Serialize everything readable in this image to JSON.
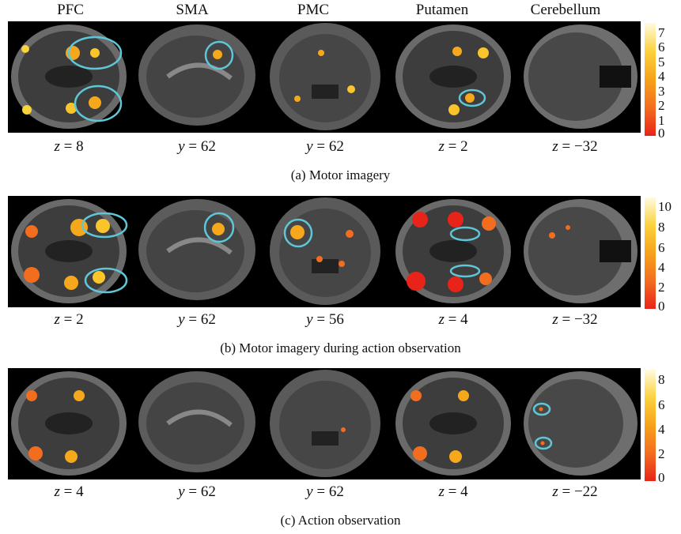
{
  "columns": [
    "PFC",
    "SMA",
    "PMC",
    "Putamen",
    "Cerebellum"
  ],
  "rows": [
    {
      "caption": "(a) Motor imagery",
      "coords": [
        {
          "axis": "z",
          "value": "8"
        },
        {
          "axis": "y",
          "value": "62"
        },
        {
          "axis": "y",
          "value": "62"
        },
        {
          "axis": "z",
          "value": "2"
        },
        {
          "axis": "z",
          "value": "−32"
        }
      ],
      "colorbar_ticks": [
        "7",
        "6",
        "5",
        "4",
        "3",
        "2",
        "1",
        "0"
      ]
    },
    {
      "caption": "(b) Motor imagery during action observation",
      "coords": [
        {
          "axis": "z",
          "value": "2"
        },
        {
          "axis": "y",
          "value": "62"
        },
        {
          "axis": "y",
          "value": "56"
        },
        {
          "axis": "z",
          "value": "4"
        },
        {
          "axis": "z",
          "value": "−32"
        }
      ],
      "colorbar_ticks": [
        "10",
        "8",
        "6",
        "4",
        "2",
        "0"
      ]
    },
    {
      "caption": "(c) Action observation",
      "coords": [
        {
          "axis": "z",
          "value": "4"
        },
        {
          "axis": "y",
          "value": "62"
        },
        {
          "axis": "y",
          "value": "62"
        },
        {
          "axis": "z",
          "value": "4"
        },
        {
          "axis": "z",
          "value": "−22"
        }
      ],
      "colorbar_ticks": [
        "8",
        "6",
        "4",
        "2",
        "0"
      ]
    }
  ],
  "colors": {
    "colormap_low": "#e8241a",
    "colormap_mid": "#f7a21b",
    "colormap_high": "#fffbe0",
    "roi_circle": "#5fc6d8"
  }
}
